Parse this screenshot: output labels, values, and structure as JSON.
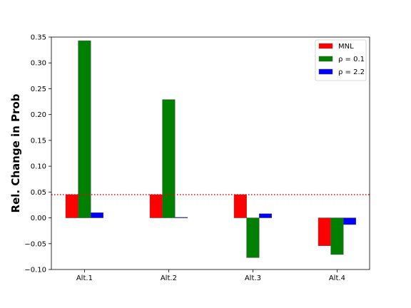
{
  "chart_data": {
    "type": "bar",
    "title": "",
    "xlabel": "",
    "ylabel": "Rel. Change in Prob",
    "categories": [
      "Alt.1",
      "Alt.2",
      "Alt.3",
      "Alt.4"
    ],
    "series": [
      {
        "name": "MNL",
        "color": "#ff0000",
        "values": [
          0.045,
          0.045,
          0.045,
          -0.054
        ]
      },
      {
        "name": "ρ = 0.1",
        "color": "#008000",
        "values": [
          0.343,
          0.229,
          -0.077,
          -0.071
        ]
      },
      {
        "name": "ρ = 2.2",
        "color": "#0000ff",
        "values": [
          0.01,
          0.001,
          0.008,
          -0.013
        ]
      }
    ],
    "ylim": [
      -0.1,
      0.35
    ],
    "yticks": [
      "−0.10",
      "−0.05",
      "0.00",
      "0.05",
      "0.10",
      "0.15",
      "0.20",
      "0.25",
      "0.30",
      "0.35"
    ],
    "ytick_values": [
      -0.1,
      -0.05,
      0.0,
      0.05,
      0.1,
      0.15,
      0.2,
      0.25,
      0.3,
      0.35
    ],
    "reference_line": {
      "value": 0.045,
      "color": "#ff0000",
      "style": "dotted"
    },
    "grid": false,
    "legend_position": "top-right"
  }
}
